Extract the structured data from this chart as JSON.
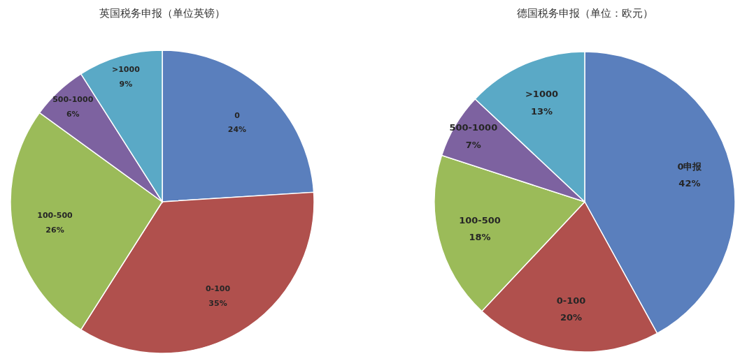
{
  "chart_data": [
    {
      "type": "pie",
      "title": "英国税务申报（单位英镑）",
      "categories": [
        "0",
        "0-100",
        "100-500",
        "500-1000",
        ">1000"
      ],
      "values": [
        24,
        35,
        26,
        6,
        9
      ],
      "colors": [
        "#5a7fbd",
        "#b0504d",
        "#9bbb59",
        "#7d62a0",
        "#5aa9c6"
      ],
      "value_labels": [
        "24%",
        "35%",
        "26%",
        "6%",
        "9%"
      ]
    },
    {
      "type": "pie",
      "title": "德国税务申报（单位：欧元）",
      "categories": [
        "0申报",
        "0-100",
        "100-500",
        "500-1000",
        ">1000"
      ],
      "values": [
        42,
        20,
        18,
        7,
        13
      ],
      "colors": [
        "#5a7fbd",
        "#b0504d",
        "#9bbb59",
        "#7d62a0",
        "#5aa9c6"
      ],
      "value_labels": [
        "42%",
        "20%",
        "18%",
        "7%",
        "13%"
      ]
    }
  ]
}
